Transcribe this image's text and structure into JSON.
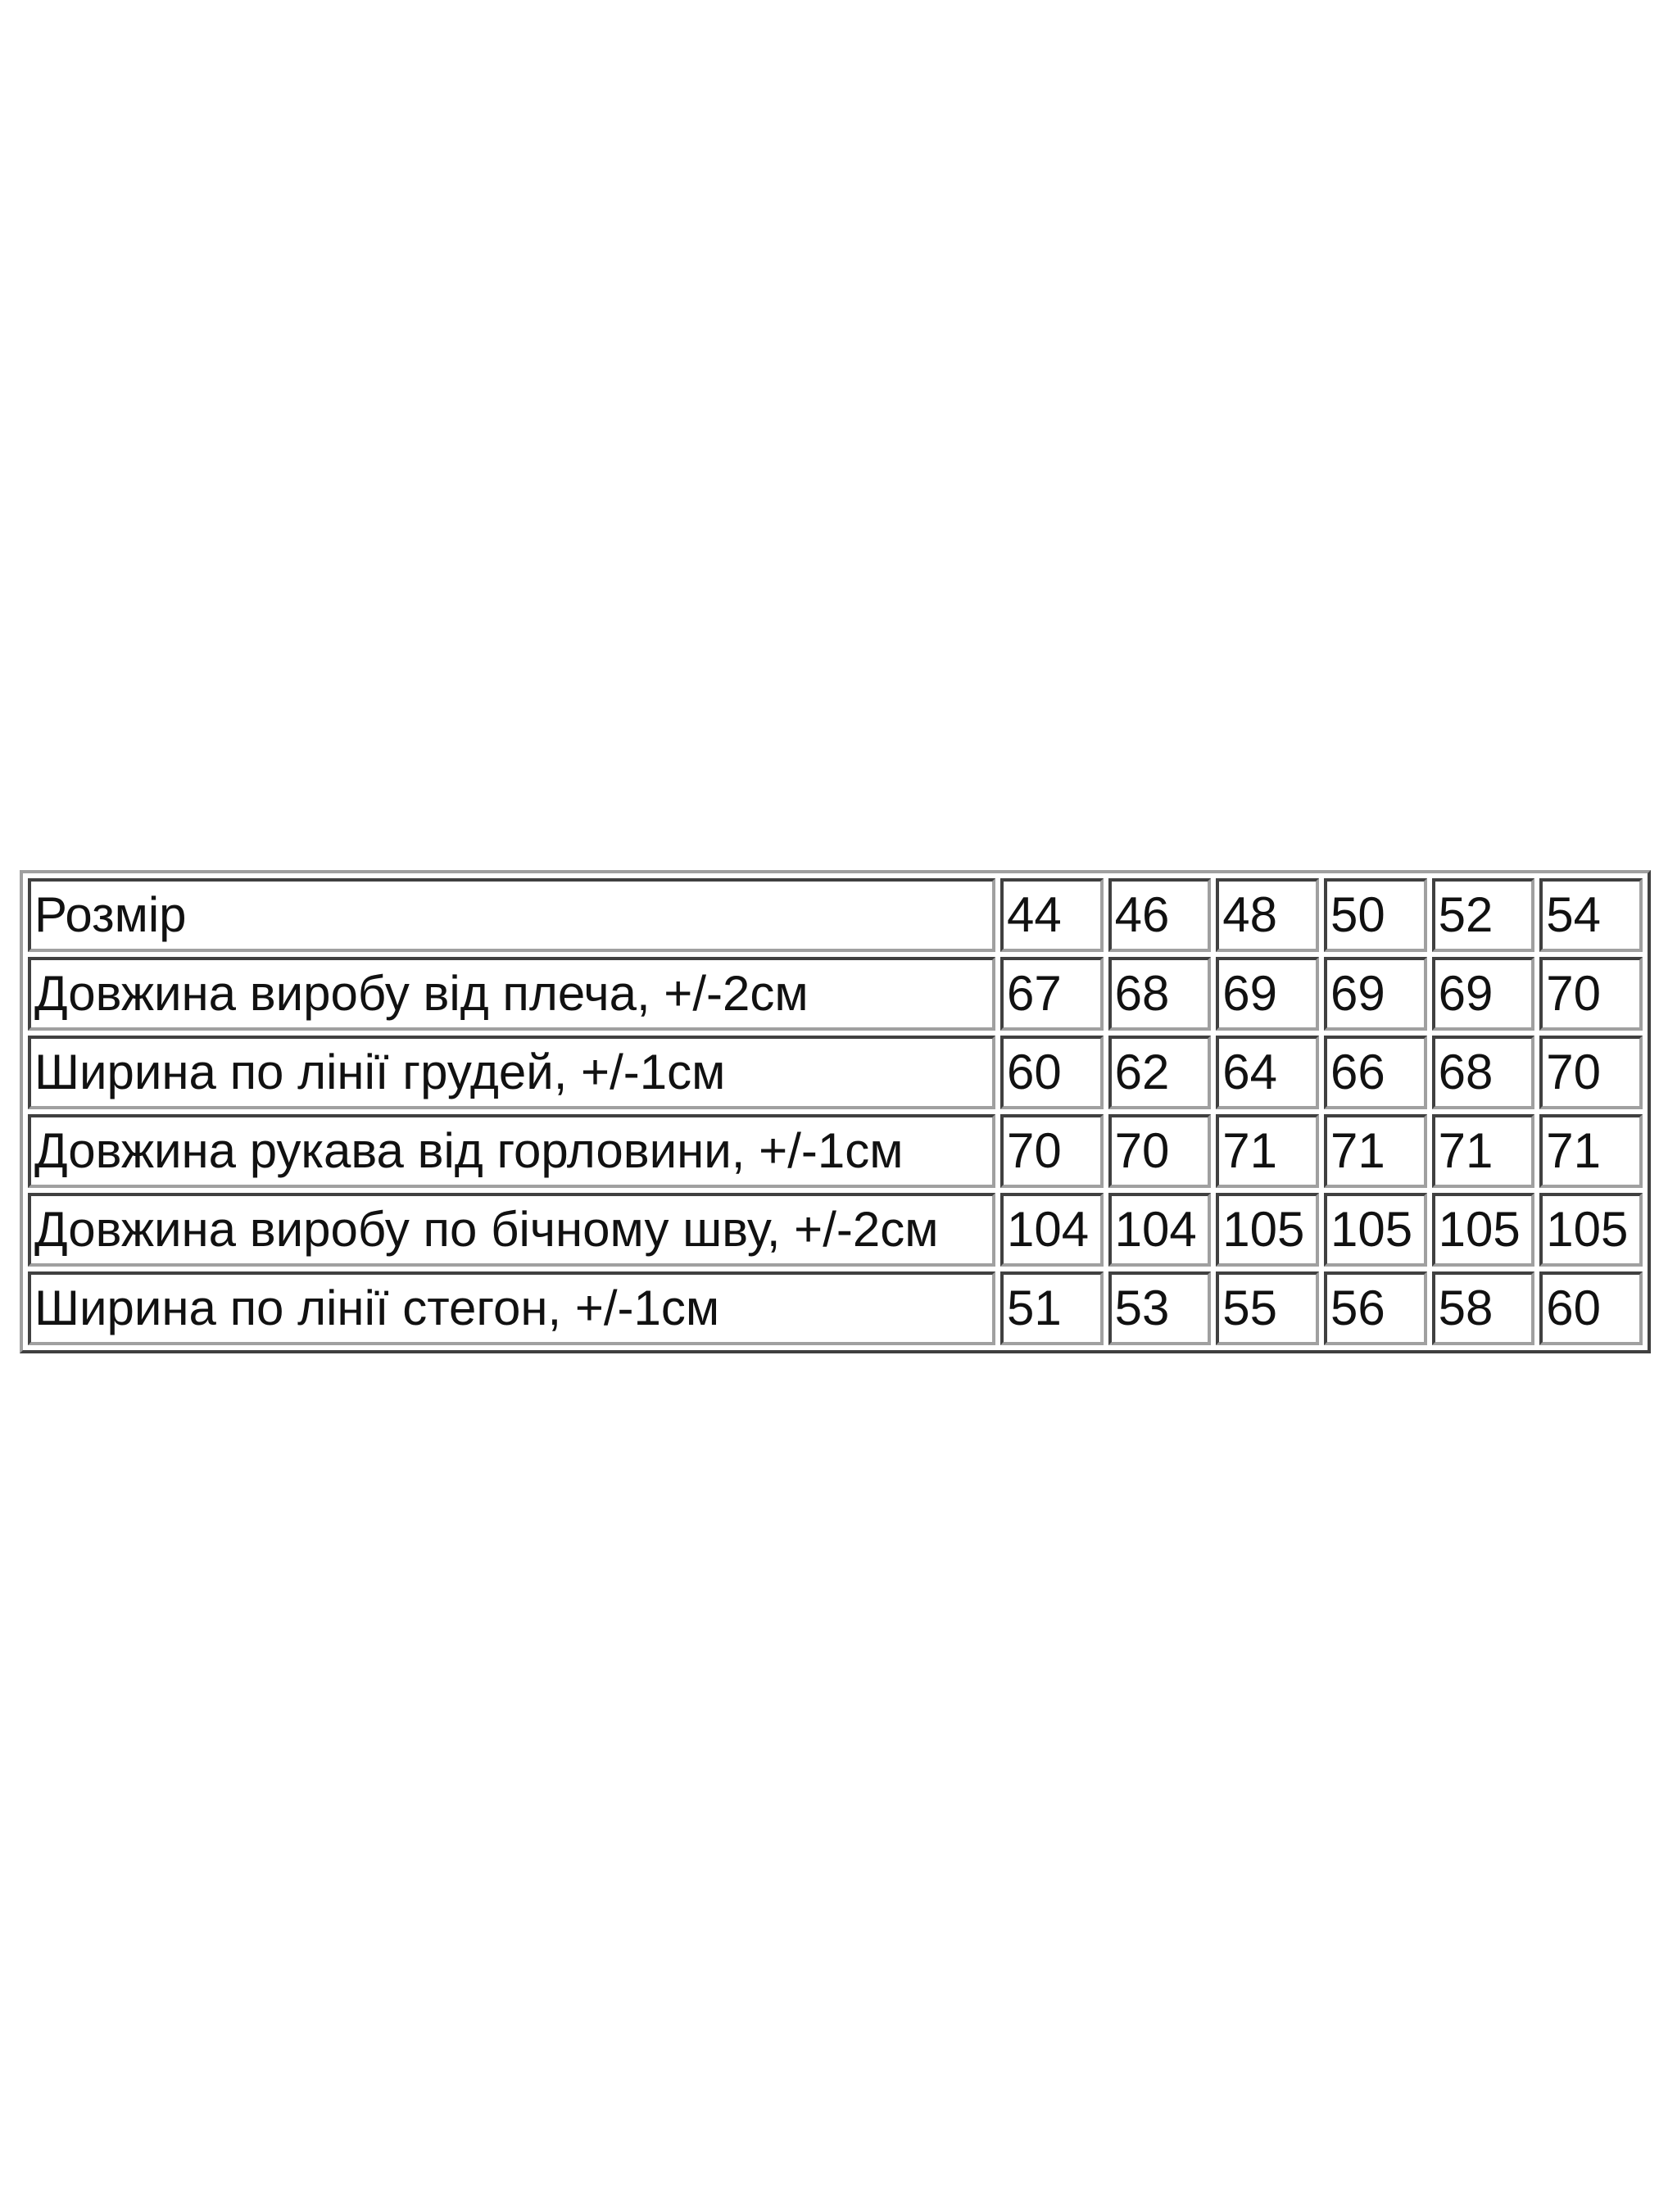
{
  "size_table": {
    "header": {
      "label": "Розмір",
      "sizes": [
        "44",
        "46",
        "48",
        "50",
        "52",
        "54"
      ]
    },
    "rows": [
      {
        "label": "Довжина виробу від плеча, +/-2см",
        "values": [
          "67",
          "68",
          "69",
          "69",
          "69",
          "70"
        ]
      },
      {
        "label": "Ширина по лінії грудей, +/-1см",
        "values": [
          "60",
          "62",
          "64",
          "66",
          "68",
          "70"
        ]
      },
      {
        "label": "Довжина рукава від горловини, +/-1см",
        "values": [
          "70",
          "70",
          "71",
          "71",
          "71",
          "71"
        ]
      },
      {
        "label": "Довжина виробу по бічному шву, +/-2см",
        "values": [
          "104",
          "104",
          "105",
          "105",
          "105",
          "105"
        ]
      },
      {
        "label": "Ширина по лінії стегон, +/-1см",
        "values": [
          "51",
          "53",
          "55",
          "56",
          "58",
          "60"
        ]
      }
    ]
  }
}
